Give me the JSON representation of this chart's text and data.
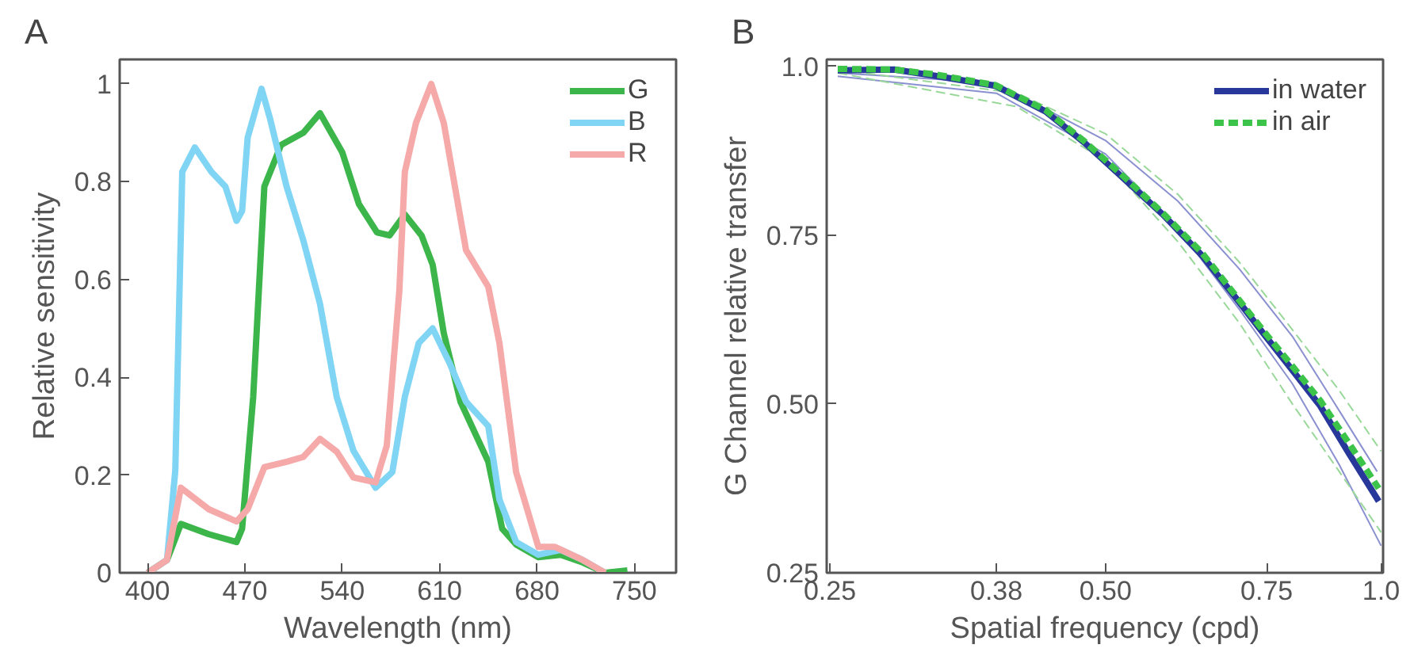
{
  "chart_data": [
    {
      "type": "line",
      "title": "A",
      "xlabel": "Wavelength (nm)",
      "ylabel": "Relative sensitivity",
      "xlim": [
        380,
        780
      ],
      "ylim": [
        0,
        1.05
      ],
      "xticks": [
        400,
        470,
        540,
        610,
        680,
        750
      ],
      "yticks": [
        {
          "value": 0,
          "label": "0"
        },
        0.2,
        0.4,
        0.6,
        0.8,
        {
          "value": 1,
          "label": "1"
        }
      ],
      "grid": false,
      "legend": "top right",
      "line_style": "solid",
      "series": [
        {
          "name": "G",
          "color": "#3cb54a",
          "x": [
            400,
            414,
            424,
            444,
            464,
            468,
            476,
            484,
            496,
            512,
            524,
            540,
            552,
            565,
            574,
            585,
            597,
            605,
            613,
            625,
            645,
            655,
            665,
            681,
            697,
            713,
            729,
            745
          ],
          "values": [
            0,
            0.026,
            0.1,
            0.079,
            0.063,
            0.09,
            0.36,
            0.79,
            0.875,
            0.9,
            0.94,
            0.86,
            0.754,
            0.696,
            0.69,
            0.733,
            0.69,
            0.63,
            0.49,
            0.35,
            0.227,
            0.09,
            0.058,
            0.032,
            0.037,
            0.021,
            0,
            0.005
          ]
        },
        {
          "name": "B",
          "color": "#80d4f4",
          "x": [
            400,
            414,
            420,
            425,
            434,
            446,
            456,
            464,
            468,
            472,
            482,
            488,
            500,
            512,
            524,
            536,
            548,
            564,
            576,
            585,
            595,
            605,
            617,
            629,
            645,
            653,
            665,
            681,
            697,
            713,
            729
          ],
          "values": [
            0,
            0.026,
            0.21,
            0.82,
            0.87,
            0.82,
            0.79,
            0.72,
            0.74,
            0.89,
            0.99,
            0.93,
            0.79,
            0.68,
            0.55,
            0.36,
            0.25,
            0.174,
            0.206,
            0.36,
            0.47,
            0.5,
            0.43,
            0.35,
            0.3,
            0.15,
            0.063,
            0.037,
            0.047,
            0.026,
            0
          ]
        },
        {
          "name": "R",
          "color": "#f6a9a9",
          "x": [
            400,
            414,
            424,
            444,
            464,
            472,
            484,
            500,
            512,
            524,
            536,
            548,
            564,
            572,
            581,
            585,
            593,
            604,
            613,
            629,
            645,
            653,
            665,
            681,
            693,
            713,
            729
          ],
          "values": [
            0,
            0.026,
            0.174,
            0.13,
            0.105,
            0.13,
            0.216,
            0.227,
            0.237,
            0.274,
            0.248,
            0.195,
            0.185,
            0.26,
            0.575,
            0.82,
            0.92,
            1.0,
            0.92,
            0.66,
            0.585,
            0.47,
            0.206,
            0.053,
            0.053,
            0.026,
            0
          ]
        }
      ]
    },
    {
      "type": "line",
      "title": "B",
      "xlabel": "Spatial frequency (cpd)",
      "ylabel": "G Channel relative transfer",
      "log": "x",
      "xlim": [
        0.248,
        1.005
      ],
      "ylim": [
        0.25,
        1.01
      ],
      "xticks": [
        0.25,
        {
          "value": 0.38,
          "label": "0.38"
        },
        {
          "value": 0.5,
          "label": "0.50"
        },
        0.75,
        {
          "value": 1,
          "label": "1.0"
        }
      ],
      "yticks": [
        0.25,
        {
          "value": 0.5,
          "label": "0.50"
        },
        0.75,
        {
          "value": 1,
          "label": "1.0"
        }
      ],
      "grid": false,
      "legend": "top right",
      "series": [
        {
          "color": "#8a90d0",
          "line_style": "solid",
          "x": [
            0.255,
            0.38,
            0.5,
            0.6,
            0.7,
            0.8,
            0.9,
            0.99
          ],
          "values": [
            0.99,
            0.975,
            0.89,
            0.8,
            0.7,
            0.6,
            0.49,
            0.4
          ]
        },
        {
          "color": "#8a90d0",
          "line_style": "solid",
          "x": [
            0.255,
            0.38,
            0.5,
            0.6,
            0.7,
            0.8,
            0.9,
            1.0
          ],
          "values": [
            0.985,
            0.96,
            0.87,
            0.76,
            0.64,
            0.53,
            0.41,
            0.29
          ]
        },
        {
          "color": "#9ad89a",
          "line_style": "dashed",
          "x": [
            0.255,
            0.4,
            0.5,
            0.6,
            0.7,
            0.8,
            0.9,
            1.0
          ],
          "values": [
            0.995,
            0.96,
            0.9,
            0.81,
            0.71,
            0.61,
            0.52,
            0.43
          ]
        },
        {
          "color": "#9ad89a",
          "line_style": "dashed",
          "x": [
            0.255,
            0.4,
            0.5,
            0.6,
            0.7,
            0.8,
            0.9,
            1.0
          ],
          "values": [
            0.99,
            0.94,
            0.86,
            0.74,
            0.62,
            0.5,
            0.4,
            0.31
          ]
        },
        {
          "name": "in water",
          "color": "#27389a",
          "line_style": "solid",
          "x": [
            0.255,
            0.294,
            0.325,
            0.379,
            0.43,
            0.474,
            0.524,
            0.578,
            0.638,
            0.694,
            0.744,
            0.8,
            0.858,
            0.921,
            0.994
          ],
          "values": [
            0.994,
            0.995,
            0.986,
            0.971,
            0.933,
            0.887,
            0.833,
            0.78,
            0.719,
            0.657,
            0.604,
            0.55,
            0.497,
            0.428,
            0.356
          ]
        },
        {
          "name": "in air",
          "color": "#3cc44a",
          "line_style": "dashed",
          "x": [
            0.255,
            0.294,
            0.325,
            0.379,
            0.43,
            0.474,
            0.524,
            0.578,
            0.638,
            0.694,
            0.744,
            0.8,
            0.858,
            0.921,
            0.994
          ],
          "values": [
            0.996,
            0.995,
            0.988,
            0.972,
            0.935,
            0.889,
            0.836,
            0.782,
            0.723,
            0.66,
            0.608,
            0.556,
            0.505,
            0.443,
            0.375
          ]
        }
      ]
    }
  ]
}
